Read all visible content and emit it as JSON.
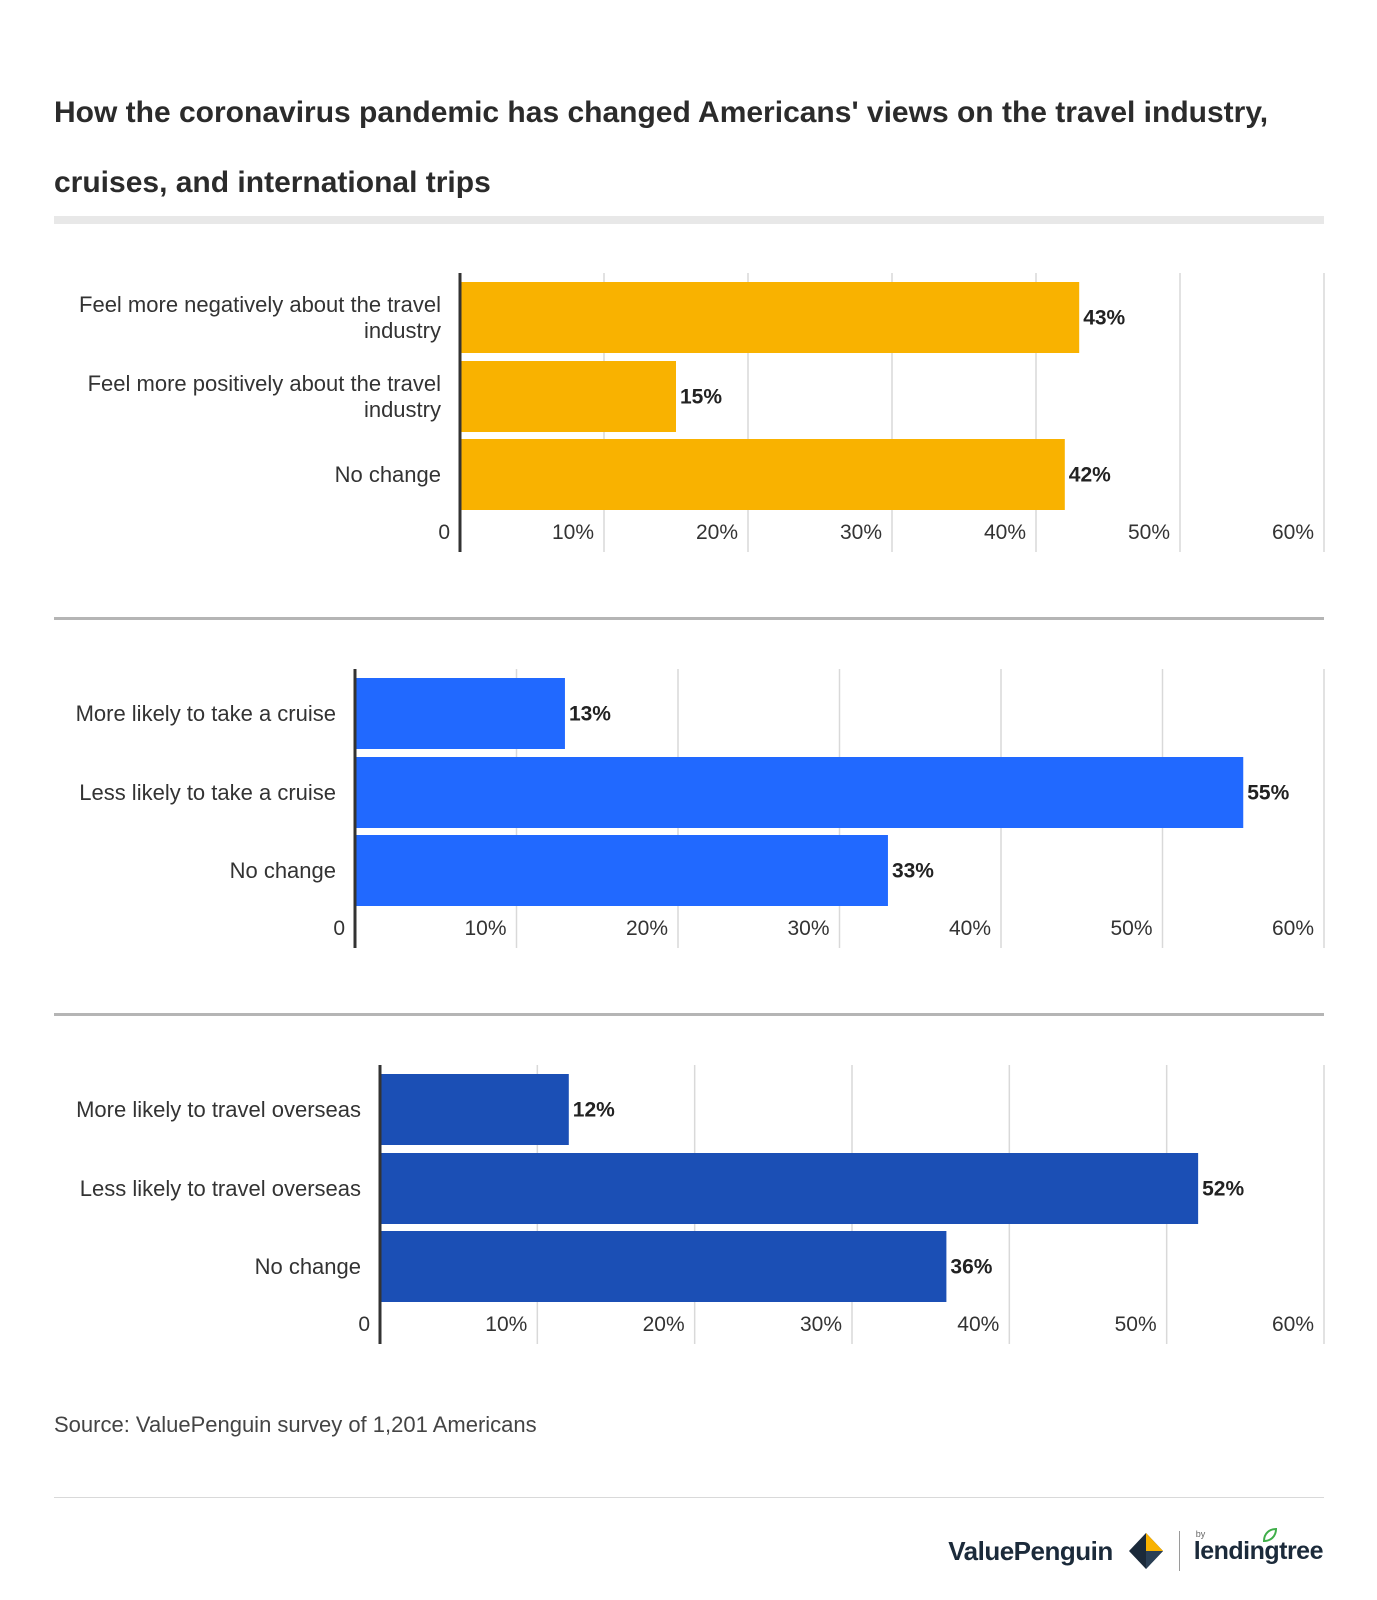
{
  "title": "How the coronavirus pandemic has changed Americans' views on the travel industry, cruises, and international trips",
  "source": "Source: ValuePenguin survey of 1,201 Americans",
  "brand": {
    "name": "ValuePenguin",
    "partner_prefix": "by",
    "partner": "lendingtree"
  },
  "colors": {
    "chart1": "#F9B200",
    "chart2": "#2169FF",
    "chart3": "#1B4FB5",
    "grid": "#d9d9d9",
    "axis": "#333333"
  },
  "chart_data": [
    {
      "type": "bar",
      "orientation": "horizontal",
      "categories": [
        "Feel more negatively about the travel industry",
        "Feel more positively about the travel industry",
        "No change"
      ],
      "values": [
        43,
        15,
        42
      ],
      "value_labels": [
        "43%",
        "15%",
        "42%"
      ],
      "xlim": [
        0,
        60
      ],
      "ticks": [
        0,
        10,
        20,
        30,
        40,
        50,
        60
      ],
      "tick_labels": [
        "0",
        "10%",
        "20%",
        "30%",
        "40%",
        "50%",
        "60%"
      ],
      "color": "#F9B200"
    },
    {
      "type": "bar",
      "orientation": "horizontal",
      "categories": [
        "More likely to take a cruise",
        "Less likely to take a cruise",
        "No change"
      ],
      "values": [
        13,
        55,
        33
      ],
      "value_labels": [
        "13%",
        "55%",
        "33%"
      ],
      "xlim": [
        0,
        60
      ],
      "ticks": [
        0,
        10,
        20,
        30,
        40,
        50,
        60
      ],
      "tick_labels": [
        "0",
        "10%",
        "20%",
        "30%",
        "40%",
        "50%",
        "60%"
      ],
      "color": "#2169FF"
    },
    {
      "type": "bar",
      "orientation": "horizontal",
      "categories": [
        "More likely to travel overseas",
        "Less likely to travel overseas",
        "No change"
      ],
      "values": [
        12,
        52,
        36
      ],
      "value_labels": [
        "12%",
        "52%",
        "36%"
      ],
      "xlim": [
        0,
        60
      ],
      "ticks": [
        0,
        10,
        20,
        30,
        40,
        50,
        60
      ],
      "tick_labels": [
        "0",
        "10%",
        "20%",
        "30%",
        "40%",
        "50%",
        "60%"
      ],
      "color": "#1B4FB5"
    }
  ]
}
